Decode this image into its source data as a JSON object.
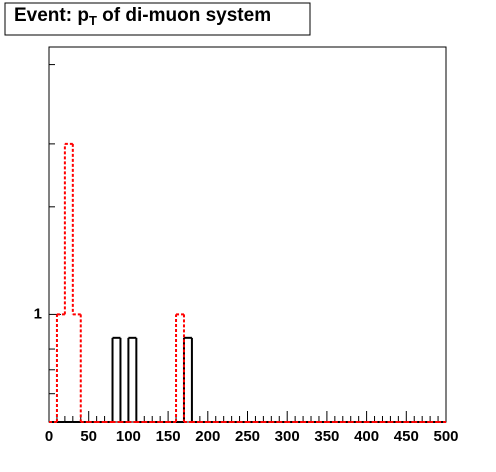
{
  "chart_data": {
    "type": "histogram",
    "title_parts": [
      "Event: p",
      "T",
      " of di-muon system"
    ],
    "bins": [
      0,
      10,
      20,
      30,
      40,
      50,
      60,
      70,
      80,
      90,
      100,
      110,
      120,
      130,
      140,
      150,
      160,
      170,
      180,
      190,
      200,
      210,
      220,
      230,
      240,
      250,
      260,
      270,
      280,
      290,
      300,
      310,
      320,
      330,
      340,
      350,
      360,
      370,
      380,
      390,
      400,
      410,
      420,
      430,
      440,
      450,
      460,
      470,
      480,
      490,
      500
    ],
    "series": [
      {
        "color": "#000000",
        "style": "solid",
        "values": [
          0,
          0,
          0,
          0,
          0,
          0,
          0,
          0,
          0.86,
          0,
          0.86,
          0,
          0,
          0,
          0,
          0,
          0,
          0.86,
          0,
          0,
          0,
          0,
          0,
          0,
          0,
          0,
          0,
          0,
          0,
          0,
          0,
          0,
          0,
          0,
          0,
          0,
          0,
          0,
          0,
          0,
          0,
          0,
          0,
          0,
          0,
          0,
          0,
          0,
          0,
          0
        ]
      },
      {
        "color": "#ff0000",
        "style": "dashed",
        "values": [
          0,
          1,
          3,
          1,
          0,
          0,
          0,
          0,
          0,
          0,
          0,
          0,
          0,
          0,
          0,
          0,
          1,
          0,
          0,
          0,
          0,
          0,
          0,
          0,
          0,
          0,
          0,
          0,
          0,
          0,
          0,
          0,
          0,
          0,
          0,
          0,
          0,
          0,
          0,
          0,
          0,
          0,
          0,
          0,
          0,
          0,
          0,
          0,
          0,
          0
        ]
      }
    ],
    "xlim": [
      0,
      500
    ],
    "xticks": [
      0,
      50,
      100,
      150,
      200,
      250,
      300,
      350,
      400,
      450,
      500
    ],
    "xminor_ticks": [
      10,
      20,
      30,
      40,
      60,
      70,
      80,
      90,
      110,
      120,
      130,
      140,
      160,
      170,
      180,
      190,
      210,
      220,
      230,
      240,
      260,
      270,
      280,
      290,
      310,
      320,
      330,
      340,
      360,
      370,
      380,
      390,
      410,
      420,
      430,
      440,
      460,
      470,
      480,
      490
    ],
    "ylim": [
      0.5,
      5.6
    ],
    "log_y": true,
    "yticks": [
      1
    ],
    "yminor_ticks": [
      0.6,
      0.7,
      0.8,
      2,
      3,
      5
    ]
  }
}
